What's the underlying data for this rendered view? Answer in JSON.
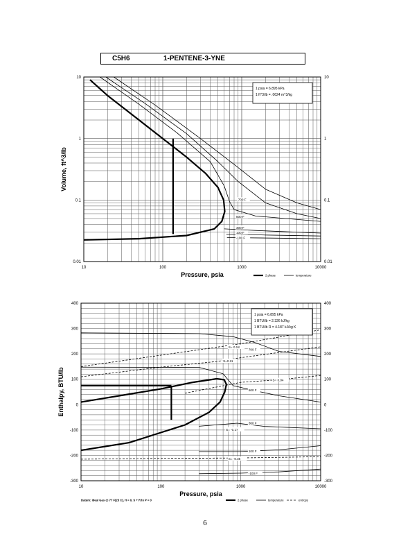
{
  "header": {
    "formula": "C5H6",
    "name": "1-PENTENE-3-YNE"
  },
  "page_number": "6",
  "chart_data": [
    {
      "type": "line",
      "title": "",
      "xlabel": "Pressure,  psia",
      "ylabel": "Volume,  ft^3/lb",
      "xscale": "log",
      "yscale": "log",
      "xlim": [
        10,
        10000
      ],
      "ylim": [
        0.01,
        10
      ],
      "x_ticks": [
        "10",
        "100",
        "1000",
        "10000"
      ],
      "y_ticks_left": [
        "0.01",
        "0.1",
        "1",
        "10"
      ],
      "y_ticks_right": [
        "0.01",
        "0.1",
        "1",
        "10"
      ],
      "grid": true,
      "info_box": [
        "1 psia  =  6.895 kPa",
        "1 ft^3/lb  =  .0624 m^3/kg"
      ],
      "legend": [
        "2 phase",
        "temperature"
      ],
      "legend_position": "bottom-right",
      "series": [
        {
          "style": "2 phase",
          "points": [
            [
              10,
              0.0225
            ],
            [
              50,
              0.0235
            ],
            [
              200,
              0.0265
            ],
            [
              450,
              0.034
            ],
            [
              560,
              0.045
            ],
            [
              610,
              0.065
            ],
            [
              590,
              0.1
            ],
            [
              500,
              0.16
            ],
            [
              350,
              0.27
            ],
            [
              200,
              0.5
            ],
            [
              100,
              1.0
            ],
            [
              50,
              2.0
            ],
            [
              20,
              5.0
            ],
            [
              12,
              9.0
            ]
          ]
        },
        {
          "style": "2 phase",
          "points": [
            [
              135,
              0.028
            ],
            [
              135,
              1.0
            ]
          ]
        },
        {
          "style": "temperature",
          "points": [
            [
              16,
              10
            ],
            [
              50,
              3.6
            ],
            [
              150,
              1.25
            ],
            [
              400,
              0.42
            ],
            [
              600,
              0.17
            ],
            [
              700,
              0.095
            ],
            [
              800,
              0.07
            ],
            [
              1500,
              0.055
            ],
            [
              10000,
              0.045
            ]
          ]
        },
        {
          "style": "temperature",
          "points": [
            [
              19,
              10
            ],
            [
              60,
              3.7
            ],
            [
              200,
              1.2
            ],
            [
              500,
              0.42
            ],
            [
              900,
              0.2
            ],
            [
              2000,
              0.09
            ],
            [
              5000,
              0.06
            ],
            [
              10000,
              0.05
            ]
          ]
        },
        {
          "style": "temperature",
          "points": [
            [
              24,
              10
            ],
            [
              80,
              3.5
            ],
            [
              300,
              1.0
            ],
            [
              800,
              0.38
            ],
            [
              2000,
              0.15
            ],
            [
              5000,
              0.09
            ],
            [
              10000,
              0.07
            ]
          ]
        },
        {
          "style": "temperature",
          "points": [
            [
              600,
              0.034
            ],
            [
              1500,
              0.032
            ],
            [
              5000,
              0.03
            ],
            [
              10000,
              0.029
            ]
          ]
        },
        {
          "style": "temperature",
          "points": [
            [
              640,
              0.028
            ],
            [
              2000,
              0.027
            ],
            [
              10000,
              0.026
            ]
          ]
        },
        {
          "style": "temperature",
          "points": [
            [
              650,
              0.0245
            ],
            [
              3000,
              0.024
            ],
            [
              10000,
              0.0235
            ]
          ]
        }
      ],
      "line_labels": [
        {
          "text": "700 F",
          "x": 900,
          "y": 0.1
        },
        {
          "text": "500 F",
          "x": 850,
          "y": 0.053
        },
        {
          "text": "300 F",
          "x": 850,
          "y": 0.035
        },
        {
          "text": "100 F",
          "x": 850,
          "y": 0.029
        },
        {
          "text": "-100 F",
          "x": 850,
          "y": 0.024
        }
      ]
    },
    {
      "type": "line",
      "title": "",
      "xlabel": "Pressure,  psia",
      "ylabel": "Enthalpy,  BTU/lb",
      "xscale": "log",
      "xlim": [
        10,
        10000
      ],
      "ylim": [
        -300,
        400
      ],
      "x_ticks": [
        "10",
        "100",
        "1000",
        "10000"
      ],
      "y_ticks_left": [
        "-300",
        "-200",
        "-100",
        "0",
        "100",
        "200",
        "300",
        "400"
      ],
      "y_ticks_right": [
        "-300",
        "-200",
        "-100",
        "0",
        "100",
        "200",
        "300",
        "400"
      ],
      "grid": true,
      "info_box": [
        "1 psia  =  6.895 kPa",
        "1 BTU/lb  =  2.326 kJ/kg",
        "1 BTU/lb R  =  4.187 kJ/kg K"
      ],
      "legend": [
        "2 phase",
        "temperature",
        "entropy"
      ],
      "legend_position": "bottom-right",
      "footnote": "Datum: Ideal Gas @ 77 F(25 C),  H = 0,  S + R ln P = 0",
      "series": [
        {
          "style": "2 phase",
          "points": [
            [
              10,
              10
            ],
            [
              30,
              35
            ],
            [
              100,
              62
            ],
            [
              250,
              88
            ],
            [
              500,
              102
            ],
            [
              620,
              98
            ],
            [
              660,
              80
            ],
            [
              630,
              50
            ],
            [
              550,
              10
            ],
            [
              400,
              -30
            ],
            [
              200,
              -80
            ],
            [
              100,
              -110
            ],
            [
              40,
              -150
            ],
            [
              10,
              -180
            ]
          ]
        },
        {
          "style": "2 phase",
          "points": [
            [
              10,
              75
            ],
            [
              135,
              75
            ]
          ]
        },
        {
          "style": "2 phase",
          "points": [
            [
              135,
              75
            ],
            [
              135,
              -60
            ]
          ]
        },
        {
          "style": "temperature",
          "points": [
            [
              10,
              283
            ],
            [
              300,
              280
            ],
            [
              800,
              268
            ],
            [
              1500,
              245
            ],
            [
              3000,
              210
            ],
            [
              10000,
              190
            ]
          ]
        },
        {
          "style": "temperature",
          "points": [
            [
              10,
              148
            ],
            [
              300,
              147
            ],
            [
              600,
              122
            ],
            [
              800,
              75
            ],
            [
              1500,
              55
            ],
            [
              3000,
              35
            ],
            [
              10000,
              10
            ]
          ]
        },
        {
          "style": "temperature",
          "points": [
            [
              300,
              -85
            ],
            [
              900,
              -73
            ],
            [
              2000,
              -86
            ],
            [
              10000,
              -95
            ]
          ]
        },
        {
          "style": "temperature",
          "points": [
            [
              300,
              -185
            ],
            [
              1000,
              -185
            ],
            [
              3000,
              -178
            ],
            [
              10000,
              -162
            ]
          ]
        },
        {
          "style": "temperature",
          "points": [
            [
              300,
              -272
            ],
            [
              1000,
              -270
            ],
            [
              3000,
              -265
            ],
            [
              10000,
              -254
            ]
          ]
        },
        {
          "style": "entropy",
          "points": [
            [
              10,
              150
            ],
            [
              100,
              195
            ],
            [
              1000,
              240
            ],
            [
              10000,
              295
            ]
          ]
        },
        {
          "style": "entropy",
          "points": [
            [
              10,
              110
            ],
            [
              100,
              148
            ],
            [
              500,
              170
            ],
            [
              1000,
              185
            ],
            [
              10000,
              228
            ]
          ]
        },
        {
          "style": "entropy",
          "points": [
            [
              200,
              45
            ],
            [
              1000,
              88
            ],
            [
              3000,
              98
            ],
            [
              10000,
              115
            ]
          ]
        },
        {
          "style": "entropy",
          "points": [
            [
              10,
              -215
            ],
            [
              100,
              -212
            ],
            [
              1000,
              -210
            ],
            [
              10000,
              -205
            ]
          ]
        }
      ],
      "line_labels": [
        {
          "text": "S= 0.18",
          "x": 700,
          "y": 225
        },
        {
          "text": "700 F",
          "x": 1250,
          "y": 215
        },
        {
          "text": "S=0.11",
          "x": 600,
          "y": 170
        },
        {
          "text": "S= 0.04",
          "x": 2500,
          "y": 95
        },
        {
          "text": "500 F",
          "x": 1250,
          "y": 55
        },
        {
          "text": "300 F",
          "x": 1250,
          "y": -75
        },
        {
          "text": "S= -0.17",
          "x": 650,
          "y": -100
        },
        {
          "text": "100 F",
          "x": 1250,
          "y": -185
        },
        {
          "text": "S= -0.36",
          "x": 700,
          "y": -215
        },
        {
          "text": "-100 F",
          "x": 1250,
          "y": -272
        }
      ]
    }
  ]
}
